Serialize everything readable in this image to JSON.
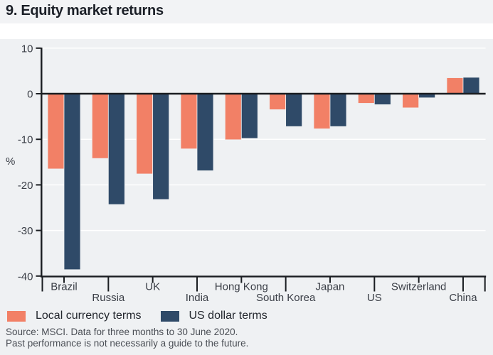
{
  "header": {
    "title": "9. Equity market returns"
  },
  "legend": {
    "items": [
      {
        "label": "Local currency terms",
        "color": "#f28066"
      },
      {
        "label": "US dollar terms",
        "color": "#2f4a68"
      }
    ]
  },
  "footer": {
    "line1": "Source: MSCI. Data for three months to 30 June 2020.",
    "line2": "Past performance is not necessarily a guide to the future."
  },
  "chart_data": {
    "type": "bar",
    "title": "9. Equity market returns",
    "xlabel": "",
    "ylabel": "%",
    "ylim": [
      -40,
      10
    ],
    "yticks": [
      10,
      0,
      -10,
      -20,
      -30,
      -40
    ],
    "grid": true,
    "legend_position": "bottom",
    "categories": [
      "Brazil",
      "Russia",
      "UK",
      "India",
      "Hong Kong",
      "South Korea",
      "Japan",
      "US",
      "Switzerland",
      "China"
    ],
    "series": [
      {
        "name": "Local currency terms",
        "color": "#f28066",
        "values": [
          -16.5,
          -14.2,
          -17.6,
          -12.1,
          -10.1,
          -3.5,
          -7.7,
          -2.1,
          -3.1,
          3.5
        ]
      },
      {
        "name": "US dollar terms",
        "color": "#2f4a68",
        "values": [
          -38.6,
          -24.3,
          -23.2,
          -16.9,
          -9.8,
          -7.2,
          -7.2,
          -2.4,
          -0.9,
          3.6
        ]
      }
    ],
    "colors": {
      "background": "#eff1f3",
      "gridline": "#ffffff",
      "axis": "#1a1d21"
    }
  }
}
